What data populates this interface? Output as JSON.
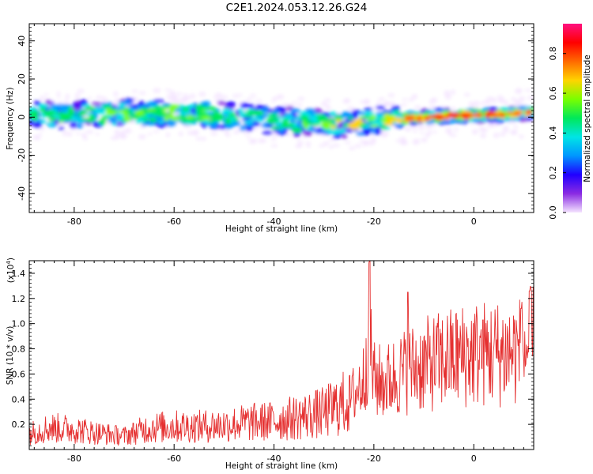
{
  "title": "C2E1.2024.053.12.26.G24",
  "chart_data": [
    {
      "type": "heatmap",
      "xlabel": "Height of straight line (km)",
      "ylabel": "Frequency (Hz)",
      "xlim": [
        -89,
        12
      ],
      "ylim": [
        -50,
        49
      ],
      "xticks": [
        -80,
        -60,
        -40,
        -20,
        0
      ],
      "yticks": [
        -40,
        -20,
        0,
        20,
        40
      ],
      "colorbar": {
        "label": "Normalized spectral amplitude",
        "range": [
          0.0,
          0.95
        ],
        "ticks": [
          "0.0",
          "0.2",
          "0.4",
          "0.6",
          "0.8"
        ],
        "colormap": [
          "#f4e4ff",
          "#8a2be2",
          "#2000ff",
          "#0096ff",
          "#00e5e5",
          "#00e85a",
          "#7aff00",
          "#ffd400",
          "#ff6a00",
          "#ff0000",
          "#ff1080"
        ]
      },
      "ridge": {
        "x": [
          -88,
          -80,
          -70,
          -60,
          -50,
          -40,
          -30,
          -25,
          -20,
          -10,
          0,
          10,
          12
        ],
        "center_freq": [
          1,
          1,
          2,
          2,
          1,
          -2,
          -3,
          -4,
          -2,
          0,
          1,
          2,
          2
        ],
        "peak_amplitude": [
          0.45,
          0.5,
          0.55,
          0.6,
          0.5,
          0.45,
          0.6,
          0.7,
          0.55,
          0.85,
          0.9,
          0.85,
          0.8
        ]
      }
    },
    {
      "type": "line",
      "xlabel": "Height of straight line (km)",
      "ylabel": "SNR (10 * v/v)",
      "yscale_label": "(x10",
      "yscale_exp": "4",
      "yscale_suffix": ")",
      "xlim": [
        -89,
        12
      ],
      "ylim": [
        0,
        15000
      ],
      "xticks": [
        -80,
        -60,
        -40,
        -20,
        0
      ],
      "yticks": [
        "0.2",
        "0.4",
        "0.6",
        "0.8",
        "1.0",
        "1.2",
        "1.4"
      ],
      "series": [
        {
          "color": "#e53030",
          "x": [
            -89,
            -85,
            -80,
            -75,
            -70,
            -65,
            -60,
            -55,
            -50,
            -45,
            -40,
            -35,
            -30,
            -25,
            -22,
            -21,
            -20,
            -18,
            -15,
            -13,
            -10,
            -5,
            0,
            5,
            10,
            12
          ],
          "y": [
            1200,
            1600,
            1500,
            1200,
            1000,
            1600,
            1700,
            1700,
            1800,
            2000,
            2100,
            2400,
            2700,
            3600,
            5200,
            9000,
            5200,
            5000,
            5600,
            6000,
            6300,
            6800,
            7200,
            7200,
            7400,
            8000
          ],
          "peaks": [
            {
              "x": -20.8,
              "y": 15000
            },
            {
              "x": -13.2,
              "y": 12500
            },
            {
              "x": 11.2,
              "y": 12600
            },
            {
              "x": 9.5,
              "y": 11200
            },
            {
              "x": 1.8,
              "y": 10300
            }
          ]
        }
      ]
    }
  ]
}
